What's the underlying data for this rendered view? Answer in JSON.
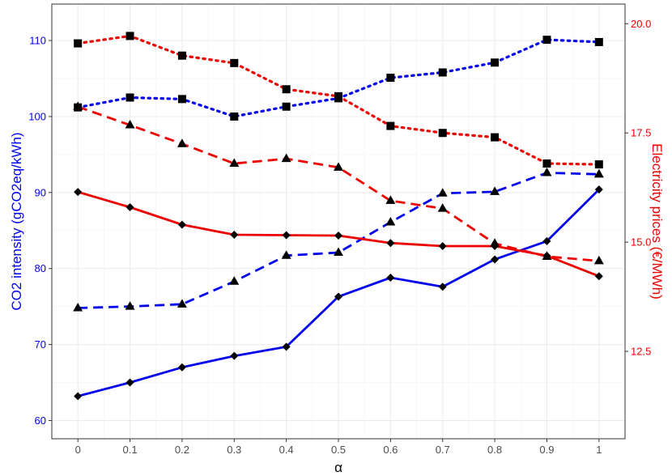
{
  "chart_data": {
    "type": "line",
    "xlabel": "α",
    "ylabel_left": "CO2 intensity (gCO2eq/kWh)",
    "ylabel_right": "Electricity prices (€/MWh)",
    "x": [
      0,
      0.1,
      0.2,
      0.3,
      0.4,
      0.5,
      0.6,
      0.7,
      0.8,
      0.9,
      1
    ],
    "x_tick_labels": [
      "0",
      "0.1",
      "0.2",
      "0.3",
      "0.4",
      "0.5",
      "0.6",
      "0.7",
      "0.8",
      "0.9",
      "1"
    ],
    "xlim": [
      -0.05,
      1.05
    ],
    "y_left_ticks": [
      "60",
      "70",
      "80",
      "90",
      "100",
      "110"
    ],
    "y_left_range": [
      57.6,
      114.8
    ],
    "y_right_ticks": [
      "12.5",
      "15.0",
      "17.5",
      "20.0"
    ],
    "y_right_range": [
      10.5,
      20.45
    ],
    "grid": true,
    "colors": {
      "co2": "#0000ee",
      "price": "#ee0000"
    },
    "series": [
      {
        "axis": "left",
        "color": "blue",
        "linestyle": "solid",
        "marker": "diamond",
        "values": [
          63.2,
          65.0,
          67.0,
          68.5,
          69.7,
          76.3,
          78.8,
          77.6,
          81.2,
          83.6,
          90.4
        ]
      },
      {
        "axis": "left",
        "color": "blue",
        "linestyle": "dashed",
        "marker": "triangle",
        "values": [
          74.8,
          75.0,
          75.3,
          78.3,
          81.7,
          82.1,
          86.1,
          89.9,
          90.1,
          92.6,
          92.4
        ]
      },
      {
        "axis": "left",
        "color": "blue",
        "linestyle": "dotted",
        "marker": "square",
        "values": [
          101.2,
          102.5,
          102.3,
          100.0,
          101.3,
          102.4,
          105.1,
          105.8,
          107.1,
          110.1,
          109.8
        ]
      },
      {
        "axis": "right",
        "color": "red",
        "linestyle": "solid",
        "marker": "diamond",
        "values": [
          16.15,
          15.8,
          15.4,
          15.17,
          15.16,
          15.15,
          14.98,
          14.91,
          14.91,
          14.69,
          14.22
        ]
      },
      {
        "axis": "right",
        "color": "red",
        "linestyle": "dashed",
        "marker": "triangle",
        "values": [
          18.1,
          17.68,
          17.25,
          16.8,
          16.91,
          16.71,
          15.95,
          15.77,
          14.97,
          14.67,
          14.57
        ]
      },
      {
        "axis": "right",
        "color": "red",
        "linestyle": "dotted",
        "marker": "square",
        "values": [
          19.55,
          19.72,
          19.27,
          19.1,
          18.5,
          18.34,
          17.66,
          17.5,
          17.4,
          16.8,
          16.78
        ]
      }
    ]
  }
}
